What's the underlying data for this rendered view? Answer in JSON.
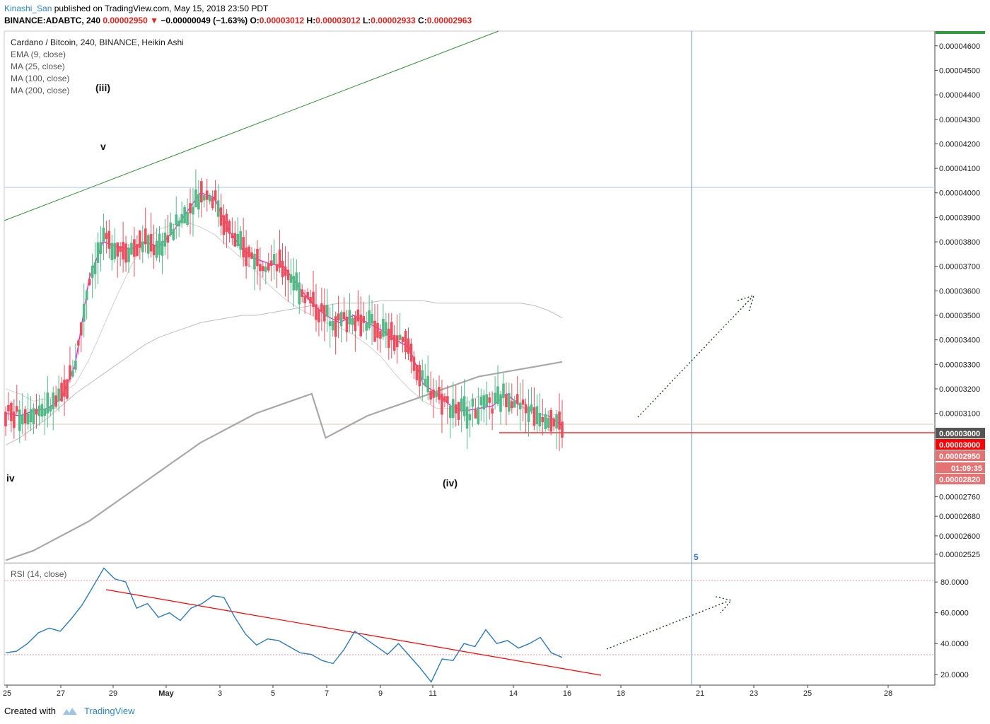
{
  "header": {
    "author": "Kinashi_San",
    "published_text": "published on TradingView.com, May 15, 2018 23:50 PDT",
    "symbol": "BINANCE:ADABTC, 240",
    "last_price": "0.00002950",
    "change": "−0.00000049 (−1.63%)",
    "o_label": "O:",
    "o_value": "0.00003012",
    "h_label": "H:",
    "h_value": "0.00003012",
    "l_label": "L:",
    "l_value": "0.00002933",
    "c_label": "C:",
    "c_value": "0.00002963"
  },
  "legend": {
    "title": "Cardano / Bitcoin, 240, BINANCE, Heikin Ashi",
    "indicators": [
      "EMA (9, close)",
      "MA (25, close)",
      "MA (100, close)",
      "MA (200, close)"
    ],
    "rsi_label": "RSI (14, close)"
  },
  "annotations": {
    "wave_iii": "(iii)",
    "wave_v": "v",
    "wave_iv_left": "iv",
    "wave_iv": "(iv)",
    "vertical_line_label": "5"
  },
  "price_axis": {
    "ticks": [
      "0.00004600",
      "0.00004500",
      "0.00004400",
      "0.00004300",
      "0.00004200",
      "0.00004100",
      "0.00004000",
      "0.00003900",
      "0.00003800",
      "0.00003700",
      "0.00003600",
      "0.00003500",
      "0.00003400",
      "0.00003300",
      "0.00003200",
      "0.00003100",
      "0.00002760",
      "0.00002680",
      "0.00002600",
      "0.00002525"
    ],
    "badges": [
      {
        "text": "0.00003000",
        "bg": "#555555"
      },
      {
        "text": "0.00003000",
        "bg": "#ff0000"
      },
      {
        "text": "0.00002950",
        "bg": "#e57373"
      },
      {
        "text": "01:09:35",
        "bg": "#e57373"
      },
      {
        "text": "0.00002820",
        "bg": "#e57373"
      }
    ]
  },
  "rsi_axis": {
    "ticks": [
      "80.0000",
      "60.0000",
      "40.0000",
      "20.0000"
    ]
  },
  "time_axis": {
    "ticks": [
      "25",
      "27",
      "29",
      "May",
      "3",
      "5",
      "7",
      "9",
      "11",
      "14",
      "16",
      "18",
      "21",
      "23",
      "25",
      "28"
    ]
  },
  "colors": {
    "up": "#53b987",
    "down": "#eb4d5c",
    "ema": "#e91ee3",
    "ma": "#aaaaaa",
    "rsi": "#2c7bb6",
    "trend_green": "#388e3c",
    "trend_red": "#ff0000"
  },
  "chart_data": [
    {
      "type": "candlestick",
      "title": "Cardano / Bitcoin, 240, BINANCE, Heikin Ashi",
      "ylim": [
        2.49e-05,
        4.66e-05
      ],
      "series": [
        {
          "name": "EMA (9, close)",
          "values": [
            3.1e-05,
            3.09e-05,
            3.11e-05,
            3.12e-05,
            3.16e-05,
            3.3e-05,
            3.65e-05,
            3.8e-05,
            3.78e-05,
            3.77e-05,
            3.8e-05,
            3.78e-05,
            3.84e-05,
            3.92e-05,
            4e-05,
            3.98e-05,
            3.85e-05,
            3.77e-05,
            3.73e-05,
            3.71e-05,
            3.7e-05,
            3.62e-05,
            3.55e-05,
            3.5e-05,
            3.47e-05,
            3.5e-05,
            3.47e-05,
            3.44e-05,
            3.4e-05,
            3.37e-05,
            3.22e-05,
            3.18e-05,
            3.13e-05,
            3.11e-05,
            3.12e-05,
            3.13e-05,
            3.18e-05,
            3.13e-05,
            3.1e-05,
            3.09e-05,
            3.05e-05
          ]
        },
        {
          "name": "MA (25, close)",
          "values": [
            3.2e-05,
            3.18e-05,
            3.15e-05,
            3.16e-05,
            3.18e-05,
            3.22e-05,
            3.32e-05,
            3.45e-05,
            3.58e-05,
            3.7e-05,
            3.8e-05,
            3.85e-05,
            3.87e-05,
            3.88e-05,
            3.86e-05,
            3.83e-05,
            3.78e-05,
            3.73e-05,
            3.68e-05,
            3.62e-05,
            3.57e-05,
            3.53e-05,
            3.5e-05,
            3.47e-05,
            3.45e-05,
            3.42e-05,
            3.38e-05,
            3.33e-05,
            3.26e-05,
            3.2e-05,
            3.15e-05,
            3.12e-05,
            3.12e-05,
            3.14e-05,
            3.17e-05,
            3.18e-05,
            3.16e-05,
            3.13e-05,
            3.1e-05,
            3.09e-05,
            3.1e-05
          ]
        },
        {
          "name": "MA (100, close)",
          "values": [
            2.97e-05,
            3e-05,
            3.04e-05,
            3.08e-05,
            3.13e-05,
            3.18e-05,
            3.22e-05,
            3.26e-05,
            3.3e-05,
            3.34e-05,
            3.38e-05,
            3.41e-05,
            3.43e-05,
            3.45e-05,
            3.47e-05,
            3.48e-05,
            3.49e-05,
            3.5e-05,
            3.5e-05,
            3.51e-05,
            3.52e-05,
            3.53e-05,
            3.54e-05,
            3.54e-05,
            3.55e-05,
            3.55e-05,
            3.55e-05,
            3.56e-05,
            3.56e-05,
            3.56e-05,
            3.56e-05,
            3.55e-05,
            3.55e-05,
            3.55e-05,
            3.55e-05,
            3.55e-05,
            3.55e-05,
            3.55e-05,
            3.54e-05,
            3.52e-05,
            3.49e-05
          ]
        },
        {
          "name": "MA (200, close)",
          "values": [
            2.5e-05,
            2.52e-05,
            2.54e-05,
            2.57e-05,
            2.6e-05,
            2.63e-05,
            2.66e-05,
            2.7e-05,
            2.74e-05,
            2.78e-05,
            2.82e-05,
            2.86e-05,
            2.9e-05,
            2.94e-05,
            2.98e-05,
            3.01e-05,
            3.04e-05,
            3.07e-05,
            3.1e-05,
            3.12e-05,
            3.14e-05,
            3.16e-05,
            3.18e-05,
            3e-05,
            3.03e-05,
            3.06e-05,
            3.09e-05,
            3.11e-05,
            3.13e-05,
            3.15e-05,
            3.17e-05,
            3.19e-05,
            3.21e-05,
            3.23e-05,
            3.25e-05,
            3.26e-05,
            3.27e-05,
            3.28e-05,
            3.29e-05,
            3.3e-05,
            3.31e-05
          ]
        }
      ]
    },
    {
      "type": "line",
      "title": "RSI (14, close)",
      "ylim": [
        13,
        92
      ],
      "series": [
        {
          "name": "RSI (14, close)",
          "values": [
            34,
            35,
            40,
            47,
            50,
            48,
            56,
            65,
            77,
            89,
            82,
            80,
            63,
            66,
            57,
            60,
            55,
            63,
            66,
            71,
            70,
            57,
            46,
            39,
            43,
            42,
            38,
            34,
            33,
            29,
            27,
            36,
            48,
            43,
            38,
            33,
            40,
            32,
            24,
            15,
            30,
            29,
            40,
            38,
            49,
            40,
            42,
            37,
            40,
            44,
            34,
            31
          ]
        }
      ]
    }
  ]
}
